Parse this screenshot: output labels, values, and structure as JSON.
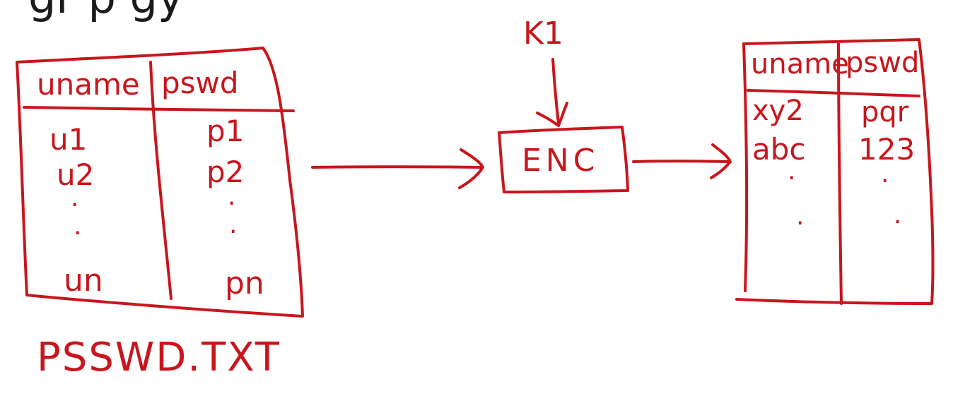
{
  "colors": {
    "ink": "#c8161d",
    "heading": "#1a1a1a",
    "background": "#ffffff"
  },
  "heading_fragment": {
    "text": "gr        p    gy"
  },
  "plain_table": {
    "headers": [
      "uname",
      "pswd"
    ],
    "rows": [
      [
        "u1",
        "p1"
      ],
      [
        "u2",
        "p2"
      ],
      [
        ".",
        "."
      ],
      [
        ".",
        "."
      ],
      [
        "un",
        "pn"
      ]
    ]
  },
  "caption": "PSSWD.TXT",
  "key_label": "K1",
  "enc_box_label": "ENC",
  "encrypted_table": {
    "headers": [
      "uname",
      "pswd"
    ],
    "rows": [
      [
        "xy2",
        "pqr"
      ],
      [
        "abc",
        "123"
      ],
      [
        ".",
        "."
      ],
      [
        ".",
        "."
      ]
    ]
  }
}
